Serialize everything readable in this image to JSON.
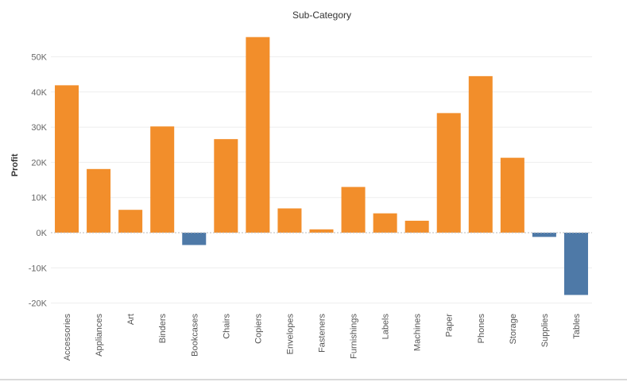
{
  "chart_data": {
    "type": "bar",
    "title": "Sub-Category",
    "xlabel": "",
    "ylabel": "Profit",
    "categories": [
      "Accessories",
      "Appliances",
      "Art",
      "Binders",
      "Bookcases",
      "Chairs",
      "Copiers",
      "Envelopes",
      "Fasteners",
      "Furnishings",
      "Labels",
      "Machines",
      "Paper",
      "Phones",
      "Storage",
      "Supplies",
      "Tables"
    ],
    "values": [
      41900,
      18100,
      6500,
      30200,
      -3500,
      26600,
      55600,
      6900,
      950,
      13000,
      5500,
      3400,
      34000,
      44500,
      21300,
      -1200,
      -17700
    ],
    "ylim": [
      -20000,
      57000
    ],
    "yticks": [
      -20000,
      -10000,
      0,
      10000,
      20000,
      30000,
      40000,
      50000
    ],
    "ytick_labels": [
      "-20K",
      "-10K",
      "0K",
      "10K",
      "20K",
      "30K",
      "40K",
      "50K"
    ],
    "colors": {
      "positive": "#f28e2b",
      "negative": "#4e79a7"
    },
    "grid": true,
    "legend": "none"
  }
}
